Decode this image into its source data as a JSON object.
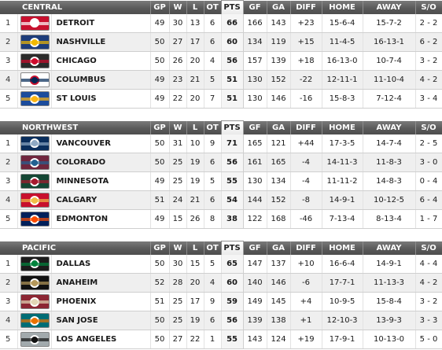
{
  "headers": [
    "GP",
    "W",
    "L",
    "OT",
    "PTS",
    "GF",
    "GA",
    "DIFF",
    "HOME",
    "AWAY",
    "S/O"
  ],
  "divisions": [
    {
      "name": "CENTRAL",
      "teams": [
        {
          "rank": "1",
          "name": "DETROIT",
          "gp": "49",
          "w": "30",
          "l": "13",
          "ot": "6",
          "pts": "66",
          "gf": "166",
          "ga": "143",
          "diff": "+23",
          "home": "15-6-4",
          "away": "15-7-2",
          "so": "2 - 2",
          "logo_bg": "#c8102e",
          "logo_mark": "#ffffff",
          "logo_icon": "winged-wheel-logo-icon"
        },
        {
          "rank": "2",
          "name": "NASHVILLE",
          "gp": "50",
          "w": "27",
          "l": "17",
          "ot": "6",
          "pts": "60",
          "gf": "134",
          "ga": "119",
          "diff": "+15",
          "home": "11-4-5",
          "away": "16-13-1",
          "so": "6 - 2",
          "logo_bg": "#1d3d7a",
          "logo_mark": "#f2b900",
          "logo_icon": "predators-logo-icon"
        },
        {
          "rank": "3",
          "name": "CHICAGO",
          "gp": "50",
          "w": "26",
          "l": "20",
          "ot": "4",
          "pts": "56",
          "gf": "157",
          "ga": "139",
          "diff": "+18",
          "home": "16-13-0",
          "away": "10-7-4",
          "so": "3 - 2",
          "logo_bg": "#2b2b2b",
          "logo_mark": "#cf0a2c",
          "logo_icon": "blackhawks-logo-icon"
        },
        {
          "rank": "4",
          "name": "COLUMBUS",
          "gp": "49",
          "w": "23",
          "l": "21",
          "ot": "5",
          "pts": "51",
          "gf": "130",
          "ga": "152",
          "diff": "-22",
          "home": "12-11-1",
          "away": "11-10-4",
          "so": "4 - 2",
          "logo_bg": "#ffffff",
          "logo_mark": "#002654",
          "logo_icon": "blue-jackets-logo-icon"
        },
        {
          "rank": "5",
          "name": "ST LOUIS",
          "gp": "49",
          "w": "22",
          "l": "20",
          "ot": "7",
          "pts": "51",
          "gf": "130",
          "ga": "146",
          "diff": "-16",
          "home": "15-8-3",
          "away": "7-12-4",
          "so": "3 - 4",
          "logo_bg": "#1c4c9c",
          "logo_mark": "#fcb514",
          "logo_icon": "blues-logo-icon"
        }
      ]
    },
    {
      "name": "NORTHWEST",
      "teams": [
        {
          "rank": "1",
          "name": "VANCOUVER",
          "gp": "50",
          "w": "31",
          "l": "10",
          "ot": "9",
          "pts": "71",
          "gf": "165",
          "ga": "121",
          "diff": "+44",
          "home": "17-3-5",
          "away": "14-7-4",
          "so": "2 - 5",
          "logo_bg": "#0a2e5c",
          "logo_mark": "#8fa9c4",
          "logo_icon": "canucks-logo-icon"
        },
        {
          "rank": "2",
          "name": "COLORADO",
          "gp": "50",
          "w": "25",
          "l": "19",
          "ot": "6",
          "pts": "56",
          "gf": "161",
          "ga": "165",
          "diff": "-4",
          "home": "14-11-3",
          "away": "11-8-3",
          "so": "3 - 0",
          "logo_bg": "#6f263d",
          "logo_mark": "#236192",
          "logo_icon": "avalanche-logo-icon"
        },
        {
          "rank": "3",
          "name": "MINNESOTA",
          "gp": "49",
          "w": "25",
          "l": "19",
          "ot": "5",
          "pts": "55",
          "gf": "130",
          "ga": "134",
          "diff": "-4",
          "home": "11-11-2",
          "away": "14-8-3",
          "so": "0 - 4",
          "logo_bg": "#154734",
          "logo_mark": "#a6192e",
          "logo_icon": "wild-logo-icon"
        },
        {
          "rank": "4",
          "name": "CALGARY",
          "gp": "51",
          "w": "24",
          "l": "21",
          "ot": "6",
          "pts": "54",
          "gf": "144",
          "ga": "152",
          "diff": "-8",
          "home": "14-9-1",
          "away": "10-12-5",
          "so": "6 - 4",
          "logo_bg": "#c8102e",
          "logo_mark": "#f1be48",
          "logo_icon": "flames-logo-icon"
        },
        {
          "rank": "5",
          "name": "EDMONTON",
          "gp": "49",
          "w": "15",
          "l": "26",
          "ot": "8",
          "pts": "38",
          "gf": "122",
          "ga": "168",
          "diff": "-46",
          "home": "7-13-4",
          "away": "8-13-4",
          "so": "1 - 7",
          "logo_bg": "#00205b",
          "logo_mark": "#fc4c02",
          "logo_icon": "oilers-logo-icon"
        }
      ]
    },
    {
      "name": "PACIFIC",
      "teams": [
        {
          "rank": "1",
          "name": "DALLAS",
          "gp": "50",
          "w": "30",
          "l": "15",
          "ot": "5",
          "pts": "65",
          "gf": "147",
          "ga": "137",
          "diff": "+10",
          "home": "16-6-4",
          "away": "14-9-1",
          "so": "4 - 4",
          "logo_bg": "#1c1c1c",
          "logo_mark": "#00843d",
          "logo_icon": "stars-logo-icon"
        },
        {
          "rank": "2",
          "name": "ANAHEIM",
          "gp": "52",
          "w": "28",
          "l": "20",
          "ot": "4",
          "pts": "60",
          "gf": "140",
          "ga": "146",
          "diff": "-6",
          "home": "17-7-1",
          "away": "11-13-3",
          "so": "4 - 2",
          "logo_bg": "#111111",
          "logo_mark": "#b5985a",
          "logo_icon": "ducks-logo-icon"
        },
        {
          "rank": "3",
          "name": "PHOENIX",
          "gp": "51",
          "w": "25",
          "l": "17",
          "ot": "9",
          "pts": "59",
          "gf": "149",
          "ga": "145",
          "diff": "+4",
          "home": "10-9-5",
          "away": "15-8-4",
          "so": "3 - 2",
          "logo_bg": "#8c2633",
          "logo_mark": "#e2d6b5",
          "logo_icon": "coyotes-logo-icon"
        },
        {
          "rank": "4",
          "name": "SAN JOSE",
          "gp": "50",
          "w": "25",
          "l": "19",
          "ot": "6",
          "pts": "56",
          "gf": "139",
          "ga": "138",
          "diff": "+1",
          "home": "12-10-3",
          "away": "13-9-3",
          "so": "3 - 3",
          "logo_bg": "#006d75",
          "logo_mark": "#ea7200",
          "logo_icon": "sharks-logo-icon"
        },
        {
          "rank": "5",
          "name": "LOS ANGELES",
          "gp": "50",
          "w": "27",
          "l": "22",
          "ot": "1",
          "pts": "55",
          "gf": "143",
          "ga": "124",
          "diff": "+19",
          "home": "17-9-1",
          "away": "10-13-0",
          "so": "5 - 0",
          "logo_bg": "#a2aaad",
          "logo_mark": "#111111",
          "logo_icon": "kings-logo-icon"
        }
      ]
    }
  ]
}
